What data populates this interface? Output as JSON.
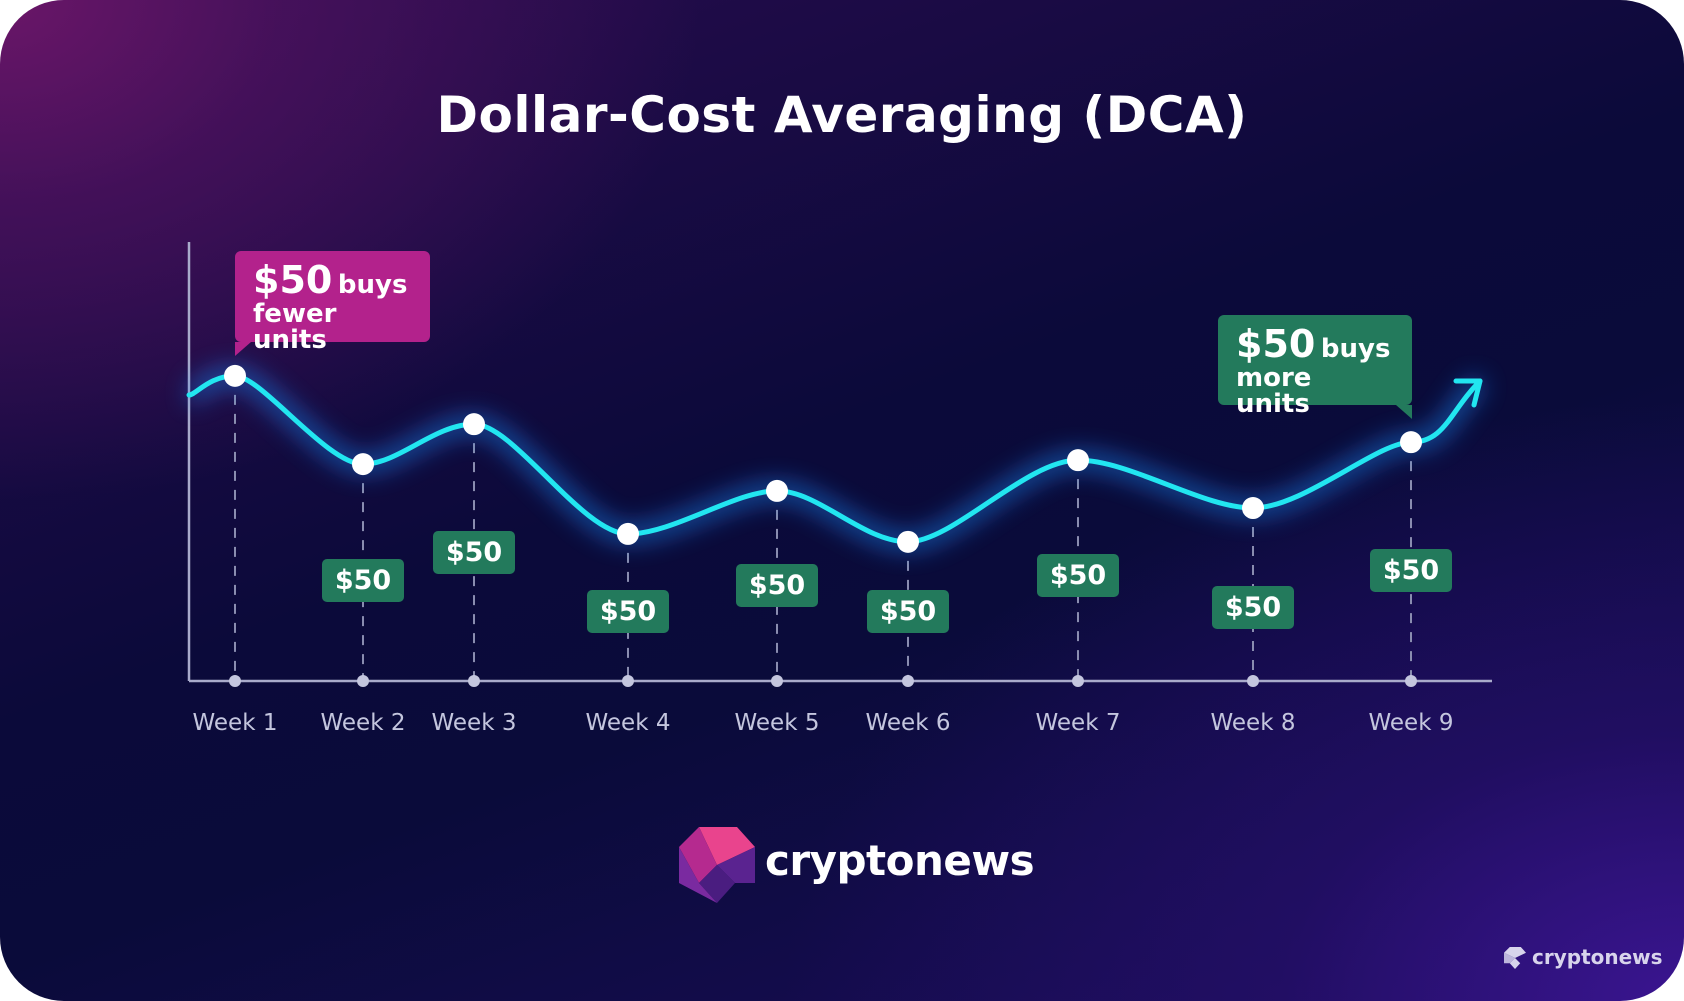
{
  "chart_data": {
    "type": "line",
    "title": "Dollar-Cost Averaging (DCA)",
    "categories": [
      "Week 1",
      "Week 2",
      "Week 3",
      "Week 4",
      "Week 5",
      "Week 6",
      "Week 7",
      "Week 8",
      "Week 9"
    ],
    "values": [
      69.5,
      49.4,
      58.5,
      33.5,
      43.3,
      31.7,
      50.3,
      39.4,
      54.4
    ],
    "value_note_labels": [
      "$50",
      "$50",
      "$50",
      "$50",
      "$50",
      "$50",
      "$50",
      "$50",
      "$50"
    ],
    "ylim": [
      0,
      100
    ],
    "grid": true,
    "line_color": "#22e6f0",
    "annotations": [
      {
        "big": "$50",
        "small": "buys",
        "line2": "fewer units",
        "color": "#b3228c",
        "category": "Week 1"
      },
      {
        "big": "$50",
        "small": "buys",
        "line2": "more units",
        "color": "#237a5c",
        "category": "Week 9"
      }
    ]
  },
  "brand": {
    "name": "cryptonews",
    "watermark": "cryptonews",
    "colors": [
      "#e9448d",
      "#7a2aa0",
      "#4a1d80"
    ]
  }
}
